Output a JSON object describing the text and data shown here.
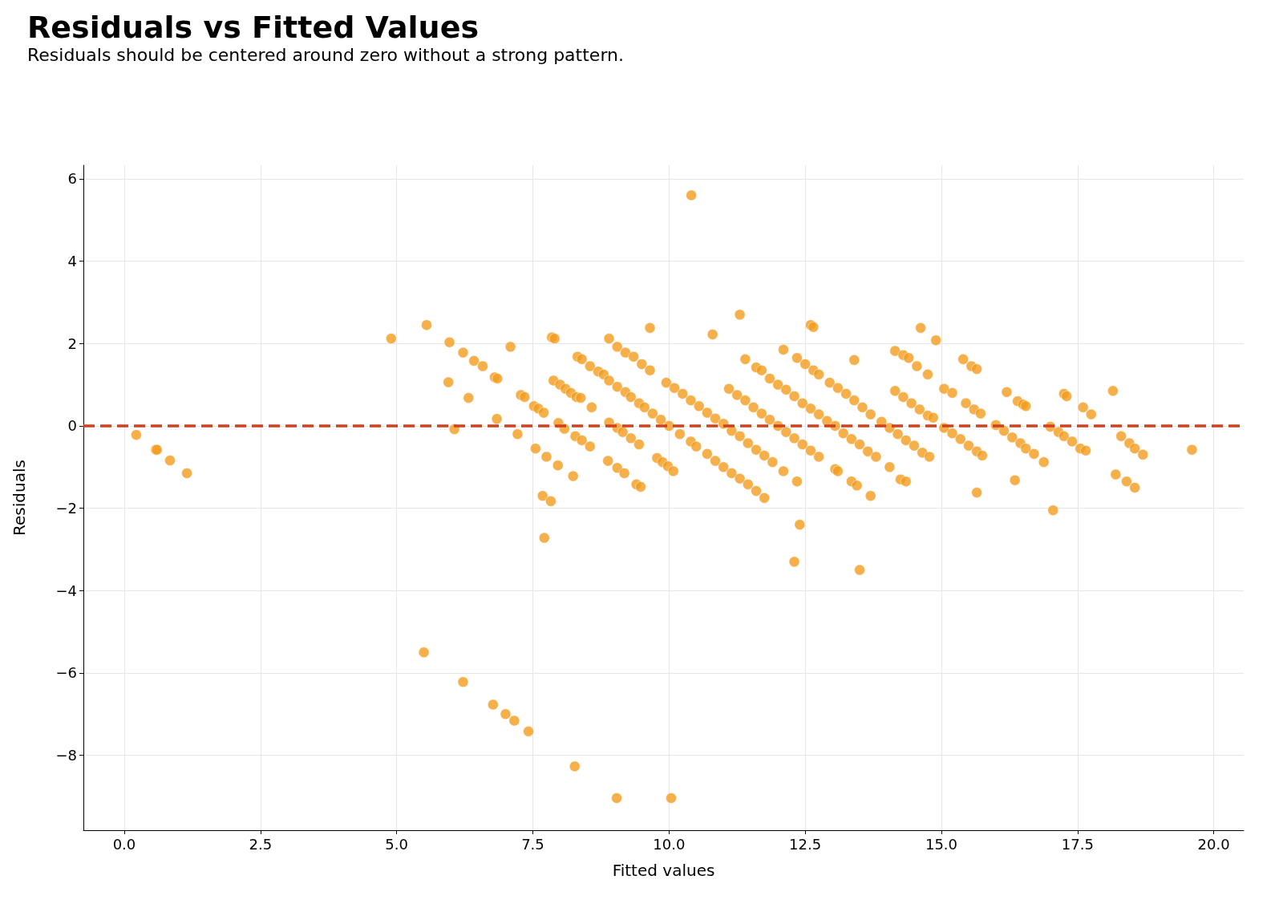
{
  "chart_data": {
    "type": "scatter",
    "title": "Residuals vs Fitted Values",
    "subtitle": "Residuals should be centered around zero without a strong pattern.",
    "xlabel": "Fitted values",
    "ylabel": "Residuals",
    "xlim": [
      -0.75,
      20.55
    ],
    "ylim": [
      -9.82,
      6.33
    ],
    "xticks": [
      {
        "value": 0,
        "label": "0.0"
      },
      {
        "value": 2.5,
        "label": "2.5"
      },
      {
        "value": 5,
        "label": "5.0"
      },
      {
        "value": 7.5,
        "label": "7.5"
      },
      {
        "value": 10,
        "label": "10.0"
      },
      {
        "value": 12.5,
        "label": "12.5"
      },
      {
        "value": 15,
        "label": "15.0"
      },
      {
        "value": 17.5,
        "label": "17.5"
      },
      {
        "value": 20,
        "label": "20.0"
      }
    ],
    "yticks": [
      {
        "value": -8,
        "label": "−8"
      },
      {
        "value": -6,
        "label": "−6"
      },
      {
        "value": -4,
        "label": "−4"
      },
      {
        "value": -2,
        "label": "−2"
      },
      0,
      2,
      4,
      6
    ],
    "grid": true,
    "marker": "circle",
    "ref_lines": [
      {
        "axis": "y",
        "value": 0,
        "label": null,
        "color": "#d2401e",
        "line_style": "dashed"
      }
    ],
    "series": [
      {
        "color": "#f39c1e",
        "x": [
          0.22,
          0.58,
          0.6,
          0.84,
          1.15,
          4.9,
          5.55,
          5.97,
          5.95,
          6.22,
          6.42,
          6.58,
          6.32,
          6.06,
          6.8,
          6.85,
          7.09,
          6.84,
          7.22,
          7.28,
          7.35,
          7.52,
          7.6,
          7.7,
          7.55,
          7.75,
          7.96,
          8.24,
          7.68,
          7.83,
          7.71,
          5.5,
          6.22,
          6.77,
          7.0,
          7.16,
          7.42,
          8.27,
          9.04,
          10.04,
          10.41,
          11.3,
          10.8,
          9.65,
          8.9,
          7.85,
          7.9,
          7.88,
          8.0,
          8.1,
          8.2,
          8.3,
          8.38,
          7.97,
          8.08,
          8.28,
          8.4,
          8.55,
          8.32,
          8.4,
          8.55,
          8.7,
          8.8,
          8.58,
          8.9,
          9.05,
          9.2,
          9.3,
          9.45,
          9.55,
          9.7,
          9.85,
          10.0,
          10.2,
          10.4,
          10.5,
          10.7,
          10.85,
          11.0,
          11.15,
          11.3,
          11.45,
          11.6,
          11.75,
          8.9,
          9.05,
          9.15,
          9.3,
          9.45,
          8.88,
          9.05,
          9.18,
          9.4,
          9.48,
          9.05,
          9.2,
          9.35,
          9.5,
          9.65,
          9.78,
          9.88,
          9.98,
          10.08,
          9.95,
          10.1,
          10.25,
          10.4,
          10.55,
          10.7,
          10.85,
          11.0,
          11.15,
          11.3,
          11.45,
          11.6,
          11.75,
          11.9,
          11.1,
          11.25,
          11.4,
          11.55,
          11.7,
          11.85,
          12.0,
          12.15,
          12.3,
          12.45,
          12.6,
          12.75,
          11.4,
          11.6,
          11.7,
          11.85,
          12.0,
          12.1,
          12.35,
          12.5,
          12.65,
          12.75,
          12.1,
          12.35,
          12.3,
          12.4,
          12.15,
          12.3,
          12.45,
          12.6,
          12.75,
          12.9,
          13.05,
          13.2,
          13.35,
          13.5,
          13.65,
          13.8,
          12.6,
          12.65,
          12.95,
          13.1,
          13.25,
          13.4,
          13.55,
          13.7,
          13.9,
          14.05,
          14.2,
          14.35,
          14.5,
          14.65,
          14.78,
          13.05,
          13.1,
          13.35,
          13.45,
          13.7,
          13.5,
          14.05,
          14.25,
          14.35,
          13.4,
          14.15,
          14.3,
          14.4,
          14.55,
          14.75,
          14.62,
          14.9,
          14.15,
          14.3,
          14.45,
          14.6,
          14.75,
          14.85,
          15.05,
          15.2,
          15.05,
          15.2,
          15.35,
          15.5,
          15.65,
          15.75,
          15.4,
          15.55,
          15.65,
          15.45,
          15.6,
          15.72,
          15.65,
          16.0,
          16.15,
          16.3,
          16.45,
          16.55,
          16.7,
          16.88,
          16.2,
          16.4,
          16.5,
          16.55,
          16.35,
          17.0,
          17.15,
          17.25,
          17.4,
          17.55,
          17.65,
          17.05,
          17.25,
          17.3,
          17.6,
          17.75,
          18.15,
          18.3,
          18.45,
          18.55,
          18.7,
          18.2,
          18.4,
          18.55,
          19.6
        ],
        "values": [
          -0.22,
          -0.58,
          -0.58,
          -0.84,
          -1.15,
          2.12,
          2.45,
          2.03,
          1.06,
          1.78,
          1.58,
          1.45,
          0.68,
          -0.08,
          1.18,
          1.15,
          1.92,
          0.17,
          -0.2,
          0.75,
          0.7,
          0.48,
          0.42,
          0.32,
          -0.55,
          -0.75,
          -0.96,
          -1.22,
          -1.7,
          -1.83,
          -2.72,
          -5.5,
          -6.22,
          -6.77,
          -7.0,
          -7.16,
          -7.42,
          -8.27,
          -9.04,
          -9.04,
          5.6,
          2.7,
          2.22,
          2.38,
          2.12,
          2.15,
          2.12,
          1.1,
          1.0,
          0.9,
          0.8,
          0.7,
          0.68,
          0.07,
          -0.07,
          -0.25,
          -0.35,
          -0.5,
          1.68,
          1.62,
          1.45,
          1.32,
          1.25,
          0.45,
          1.1,
          0.95,
          0.82,
          0.7,
          0.55,
          0.45,
          0.3,
          0.15,
          0.0,
          -0.2,
          -0.38,
          -0.5,
          -0.68,
          -0.85,
          -1.0,
          -1.15,
          -1.28,
          -1.42,
          -1.58,
          -1.75,
          0.08,
          -0.05,
          -0.15,
          -0.3,
          -0.45,
          -0.85,
          -1.02,
          -1.15,
          -1.42,
          -1.48,
          1.92,
          1.78,
          1.68,
          1.5,
          1.35,
          -0.78,
          -0.88,
          -0.98,
          -1.1,
          1.05,
          0.92,
          0.78,
          0.62,
          0.48,
          0.32,
          0.18,
          0.05,
          -0.12,
          -0.25,
          -0.42,
          -0.58,
          -0.72,
          -0.88,
          0.9,
          0.75,
          0.62,
          0.45,
          0.3,
          0.15,
          0.0,
          -0.15,
          -0.3,
          -0.45,
          -0.6,
          -0.75,
          1.62,
          1.42,
          1.35,
          1.15,
          1.0,
          1.85,
          1.65,
          1.5,
          1.35,
          1.25,
          -1.1,
          -1.35,
          -3.3,
          -2.4,
          0.88,
          0.72,
          0.55,
          0.42,
          0.28,
          0.12,
          0.0,
          -0.18,
          -0.32,
          -0.45,
          -0.62,
          -0.75,
          2.45,
          2.4,
          1.05,
          0.92,
          0.78,
          0.62,
          0.45,
          0.28,
          0.1,
          -0.05,
          -0.2,
          -0.35,
          -0.48,
          -0.65,
          -0.75,
          -1.05,
          -1.1,
          -1.35,
          -1.45,
          -1.7,
          -3.5,
          -1.0,
          -1.3,
          -1.35,
          1.6,
          1.82,
          1.72,
          1.65,
          1.45,
          1.25,
          2.38,
          2.08,
          0.85,
          0.7,
          0.55,
          0.4,
          0.25,
          0.2,
          0.9,
          0.8,
          -0.05,
          -0.18,
          -0.32,
          -0.48,
          -0.62,
          -0.72,
          1.62,
          1.45,
          1.38,
          0.55,
          0.4,
          0.3,
          -1.62,
          0.02,
          -0.12,
          -0.28,
          -0.42,
          -0.55,
          -0.68,
          -0.88,
          0.82,
          0.6,
          0.52,
          0.48,
          -1.32,
          -0.02,
          -0.15,
          -0.25,
          -0.38,
          -0.55,
          -0.6,
          -2.05,
          0.78,
          0.72,
          0.45,
          0.28,
          0.85,
          -0.25,
          -0.42,
          -0.55,
          -0.7,
          -1.18,
          -1.35,
          -1.5,
          -0.58
        ]
      }
    ]
  }
}
